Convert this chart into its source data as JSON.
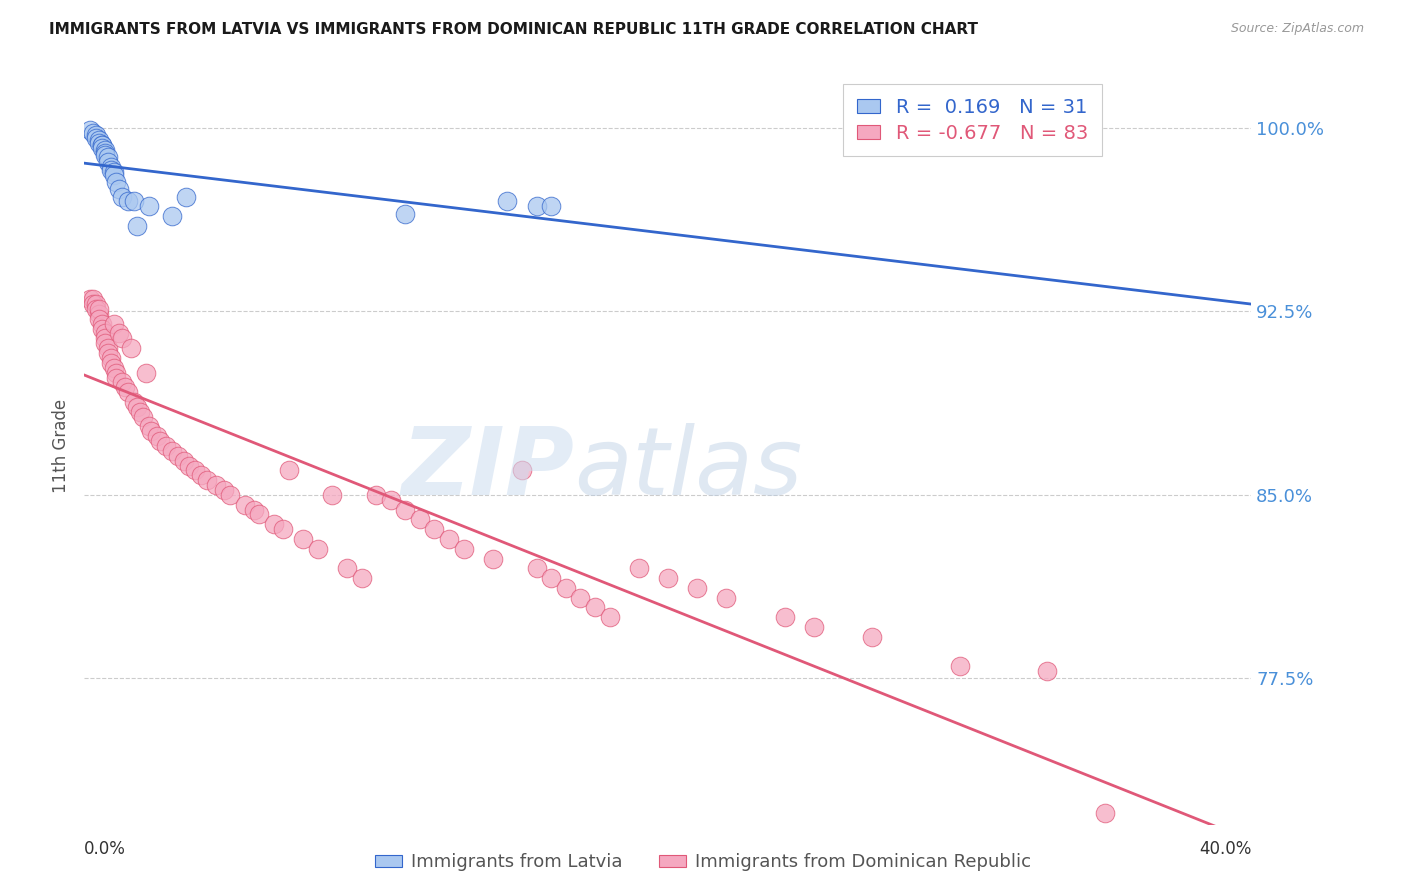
{
  "title": "IMMIGRANTS FROM LATVIA VS IMMIGRANTS FROM DOMINICAN REPUBLIC 11TH GRADE CORRELATION CHART",
  "source": "Source: ZipAtlas.com",
  "ylabel": "11th Grade",
  "ytick_labels": [
    "100.0%",
    "92.5%",
    "85.0%",
    "77.5%"
  ],
  "ytick_values": [
    1.0,
    0.925,
    0.85,
    0.775
  ],
  "xlim": [
    0.0,
    0.4
  ],
  "ylim": [
    0.715,
    1.025
  ],
  "r_latvia": 0.169,
  "n_latvia": 31,
  "r_dominican": -0.677,
  "n_dominican": 83,
  "legend_label_latvia": "Immigrants from Latvia",
  "legend_label_dominican": "Immigrants from Dominican Republic",
  "color_latvia": "#aac8f0",
  "color_dominican": "#f5a8c0",
  "trendline_color_latvia": "#3366cc",
  "trendline_color_dominican": "#e05878",
  "ytick_color": "#4a90d9",
  "latvia_x": [
    0.002,
    0.003,
    0.004,
    0.004,
    0.005,
    0.005,
    0.006,
    0.006,
    0.006,
    0.007,
    0.007,
    0.007,
    0.008,
    0.008,
    0.009,
    0.009,
    0.01,
    0.01,
    0.011,
    0.012,
    0.013,
    0.015,
    0.017,
    0.018,
    0.022,
    0.03,
    0.035,
    0.11,
    0.145,
    0.155,
    0.16
  ],
  "latvia_y": [
    0.999,
    0.998,
    0.997,
    0.996,
    0.995,
    0.994,
    0.993,
    0.993,
    0.992,
    0.991,
    0.99,
    0.989,
    0.988,
    0.986,
    0.984,
    0.983,
    0.982,
    0.981,
    0.978,
    0.975,
    0.972,
    0.97,
    0.97,
    0.96,
    0.968,
    0.964,
    0.972,
    0.965,
    0.97,
    0.968,
    0.968
  ],
  "dominican_x": [
    0.002,
    0.003,
    0.003,
    0.004,
    0.004,
    0.005,
    0.005,
    0.005,
    0.006,
    0.006,
    0.007,
    0.007,
    0.007,
    0.008,
    0.008,
    0.009,
    0.009,
    0.01,
    0.01,
    0.011,
    0.011,
    0.012,
    0.013,
    0.013,
    0.014,
    0.015,
    0.016,
    0.017,
    0.018,
    0.019,
    0.02,
    0.021,
    0.022,
    0.023,
    0.025,
    0.026,
    0.028,
    0.03,
    0.032,
    0.034,
    0.036,
    0.038,
    0.04,
    0.042,
    0.045,
    0.048,
    0.05,
    0.055,
    0.058,
    0.06,
    0.065,
    0.068,
    0.07,
    0.075,
    0.08,
    0.085,
    0.09,
    0.095,
    0.1,
    0.105,
    0.11,
    0.115,
    0.12,
    0.125,
    0.13,
    0.14,
    0.15,
    0.155,
    0.16,
    0.165,
    0.17,
    0.175,
    0.18,
    0.19,
    0.2,
    0.21,
    0.22,
    0.24,
    0.25,
    0.27,
    0.3,
    0.33,
    0.35
  ],
  "dominican_y": [
    0.93,
    0.93,
    0.928,
    0.928,
    0.926,
    0.924,
    0.926,
    0.922,
    0.92,
    0.918,
    0.916,
    0.914,
    0.912,
    0.91,
    0.908,
    0.906,
    0.904,
    0.92,
    0.902,
    0.9,
    0.898,
    0.916,
    0.914,
    0.896,
    0.894,
    0.892,
    0.91,
    0.888,
    0.886,
    0.884,
    0.882,
    0.9,
    0.878,
    0.876,
    0.874,
    0.872,
    0.87,
    0.868,
    0.866,
    0.864,
    0.862,
    0.86,
    0.858,
    0.856,
    0.854,
    0.852,
    0.85,
    0.846,
    0.844,
    0.842,
    0.838,
    0.836,
    0.86,
    0.832,
    0.828,
    0.85,
    0.82,
    0.816,
    0.85,
    0.848,
    0.844,
    0.84,
    0.836,
    0.832,
    0.828,
    0.824,
    0.86,
    0.82,
    0.816,
    0.812,
    0.808,
    0.804,
    0.8,
    0.82,
    0.816,
    0.812,
    0.808,
    0.8,
    0.796,
    0.792,
    0.78,
    0.778,
    0.72
  ]
}
